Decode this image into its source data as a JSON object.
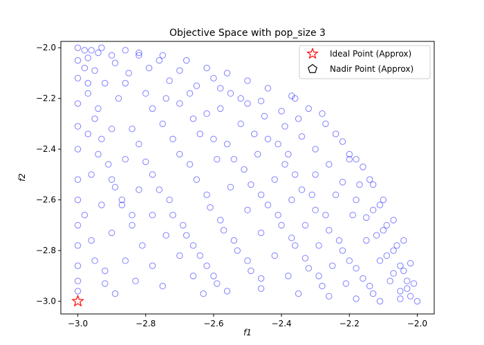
{
  "chart_data": {
    "type": "scatter",
    "title": "Objective Space with pop_size 3",
    "xlabel": "f1",
    "ylabel": "f2",
    "xlim": [
      -3.05,
      -1.95
    ],
    "ylim": [
      -3.05,
      -1.975
    ],
    "xticks": [
      -3.0,
      -2.8,
      -2.6,
      -2.4,
      -2.2,
      -2.0
    ],
    "yticks": [
      -3.0,
      -2.8,
      -2.6,
      -2.4,
      -2.2,
      -2.0
    ],
    "xtick_labels": [
      "−3.0",
      "−2.8",
      "−2.6",
      "−2.4",
      "−2.2",
      "−2.0"
    ],
    "ytick_labels": [
      "−3.0",
      "−2.8",
      "−2.6",
      "−2.4",
      "−2.2",
      "−2.0"
    ],
    "grid": false,
    "legend_placement": "top-right",
    "colors": {
      "population": "#0000ff",
      "ideal": "#ff0000",
      "nadir": "#000000"
    },
    "series": [
      {
        "marker": "open-circle",
        "color": "#0000ff",
        "points": [
          [
            -3.0,
            -2.0
          ],
          [
            -2.98,
            -2.01
          ],
          [
            -2.96,
            -2.01
          ],
          [
            -2.93,
            -2.0
          ],
          [
            -2.86,
            -2.01
          ],
          [
            -2.82,
            -2.02
          ],
          [
            -2.75,
            -2.03
          ],
          [
            -2.68,
            -2.05
          ],
          [
            -2.62,
            -2.08
          ],
          [
            -2.56,
            -2.1
          ],
          [
            -2.5,
            -2.13
          ],
          [
            -2.44,
            -2.16
          ],
          [
            -2.37,
            -2.19
          ],
          [
            -2.32,
            -2.24
          ],
          [
            -2.27,
            -2.3
          ],
          [
            -2.22,
            -2.37
          ],
          [
            -2.18,
            -2.44
          ],
          [
            -2.14,
            -2.52
          ],
          [
            -2.1,
            -2.6
          ],
          [
            -2.07,
            -2.68
          ],
          [
            -2.04,
            -2.76
          ],
          [
            -2.02,
            -2.85
          ],
          [
            -2.01,
            -2.93
          ],
          [
            -2.0,
            -3.0
          ],
          [
            -3.0,
            -2.05
          ],
          [
            -3.0,
            -2.12
          ],
          [
            -3.0,
            -2.22
          ],
          [
            -3.0,
            -2.31
          ],
          [
            -3.0,
            -2.4
          ],
          [
            -3.0,
            -2.52
          ],
          [
            -3.0,
            -2.6
          ],
          [
            -3.0,
            -2.7
          ],
          [
            -3.0,
            -2.78
          ],
          [
            -3.0,
            -2.86
          ],
          [
            -3.0,
            -2.92
          ],
          [
            -3.0,
            -2.96
          ],
          [
            -2.97,
            -2.04
          ],
          [
            -2.95,
            -2.09
          ],
          [
            -2.92,
            -2.14
          ],
          [
            -2.89,
            -2.06
          ],
          [
            -2.85,
            -2.1
          ],
          [
            -2.79,
            -2.08
          ],
          [
            -2.73,
            -2.13
          ],
          [
            -2.67,
            -2.18
          ],
          [
            -2.6,
            -2.12
          ],
          [
            -2.55,
            -2.18
          ],
          [
            -2.5,
            -2.22
          ],
          [
            -2.45,
            -2.27
          ],
          [
            -2.39,
            -2.31
          ],
          [
            -2.34,
            -2.35
          ],
          [
            -2.3,
            -2.4
          ],
          [
            -2.26,
            -2.46
          ],
          [
            -2.22,
            -2.53
          ],
          [
            -2.18,
            -2.6
          ],
          [
            -2.15,
            -2.67
          ],
          [
            -2.12,
            -2.74
          ],
          [
            -2.09,
            -2.82
          ],
          [
            -2.07,
            -2.89
          ],
          [
            -2.05,
            -2.96
          ],
          [
            -2.97,
            -2.18
          ],
          [
            -2.95,
            -2.28
          ],
          [
            -2.93,
            -2.36
          ],
          [
            -2.91,
            -2.46
          ],
          [
            -2.89,
            -2.55
          ],
          [
            -2.87,
            -2.62
          ],
          [
            -2.84,
            -2.7
          ],
          [
            -2.81,
            -2.78
          ],
          [
            -2.78,
            -2.86
          ],
          [
            -2.75,
            -2.94
          ],
          [
            -2.88,
            -2.2
          ],
          [
            -2.84,
            -2.32
          ],
          [
            -2.8,
            -2.45
          ],
          [
            -2.76,
            -2.56
          ],
          [
            -2.72,
            -2.66
          ],
          [
            -2.68,
            -2.74
          ],
          [
            -2.64,
            -2.82
          ],
          [
            -2.6,
            -2.9
          ],
          [
            -2.56,
            -2.96
          ],
          [
            -2.8,
            -2.18
          ],
          [
            -2.75,
            -2.3
          ],
          [
            -2.7,
            -2.42
          ],
          [
            -2.65,
            -2.52
          ],
          [
            -2.61,
            -2.63
          ],
          [
            -2.57,
            -2.72
          ],
          [
            -2.53,
            -2.8
          ],
          [
            -2.49,
            -2.88
          ],
          [
            -2.46,
            -2.95
          ],
          [
            -2.7,
            -2.22
          ],
          [
            -2.64,
            -2.34
          ],
          [
            -2.59,
            -2.44
          ],
          [
            -2.55,
            -2.55
          ],
          [
            -2.5,
            -2.64
          ],
          [
            -2.46,
            -2.73
          ],
          [
            -2.42,
            -2.82
          ],
          [
            -2.38,
            -2.9
          ],
          [
            -2.35,
            -2.97
          ],
          [
            -2.62,
            -2.26
          ],
          [
            -2.56,
            -2.38
          ],
          [
            -2.51,
            -2.48
          ],
          [
            -2.46,
            -2.58
          ],
          [
            -2.41,
            -2.66
          ],
          [
            -2.37,
            -2.75
          ],
          [
            -2.33,
            -2.83
          ],
          [
            -2.29,
            -2.9
          ],
          [
            -2.26,
            -2.98
          ],
          [
            -2.52,
            -2.3
          ],
          [
            -2.47,
            -2.42
          ],
          [
            -2.42,
            -2.52
          ],
          [
            -2.37,
            -2.6
          ],
          [
            -2.33,
            -2.7
          ],
          [
            -2.29,
            -2.78
          ],
          [
            -2.25,
            -2.86
          ],
          [
            -2.21,
            -2.93
          ],
          [
            -2.18,
            -2.99
          ],
          [
            -2.44,
            -2.36
          ],
          [
            -2.39,
            -2.46
          ],
          [
            -2.34,
            -2.56
          ],
          [
            -2.3,
            -2.64
          ],
          [
            -2.26,
            -2.72
          ],
          [
            -2.22,
            -2.8
          ],
          [
            -2.18,
            -2.87
          ],
          [
            -2.14,
            -2.94
          ],
          [
            -2.11,
            -3.0
          ],
          [
            -2.96,
            -2.5
          ],
          [
            -2.93,
            -2.62
          ],
          [
            -2.9,
            -2.73
          ],
          [
            -2.86,
            -2.84
          ],
          [
            -2.83,
            -2.92
          ],
          [
            -2.96,
            -2.76
          ],
          [
            -2.92,
            -2.88
          ],
          [
            -2.89,
            -2.97
          ],
          [
            -2.82,
            -2.38
          ],
          [
            -2.78,
            -2.5
          ],
          [
            -2.73,
            -2.6
          ],
          [
            -2.69,
            -2.7
          ],
          [
            -2.66,
            -2.78
          ],
          [
            -2.62,
            -2.86
          ],
          [
            -2.59,
            -2.93
          ],
          [
            -2.58,
            -2.24
          ],
          [
            -2.48,
            -2.34
          ],
          [
            -2.38,
            -2.42
          ],
          [
            -2.3,
            -2.5
          ],
          [
            -2.24,
            -2.58
          ],
          [
            -2.19,
            -2.66
          ],
          [
            -2.15,
            -2.76
          ],
          [
            -2.11,
            -2.84
          ],
          [
            -2.08,
            -2.92
          ],
          [
            -2.05,
            -2.99
          ],
          [
            -2.94,
            -2.02
          ],
          [
            -2.9,
            -2.03
          ],
          [
            -2.82,
            -2.03
          ],
          [
            -2.76,
            -2.05
          ],
          [
            -2.7,
            -2.09
          ],
          [
            -2.65,
            -2.15
          ],
          [
            -2.58,
            -2.16
          ],
          [
            -2.52,
            -2.2
          ],
          [
            -2.46,
            -2.21
          ],
          [
            -2.4,
            -2.25
          ],
          [
            -2.35,
            -2.28
          ],
          [
            -2.2,
            -2.42
          ],
          [
            -2.16,
            -2.47
          ],
          [
            -2.13,
            -2.54
          ],
          [
            -2.11,
            -2.62
          ],
          [
            -2.09,
            -2.7
          ],
          [
            -2.06,
            -2.78
          ],
          [
            -2.04,
            -2.88
          ],
          [
            -2.03,
            -2.95
          ],
          [
            -2.02,
            -2.98
          ],
          [
            -2.86,
            -2.14
          ],
          [
            -2.78,
            -2.24
          ],
          [
            -2.72,
            -2.36
          ],
          [
            -2.67,
            -2.46
          ],
          [
            -2.62,
            -2.58
          ],
          [
            -2.58,
            -2.68
          ],
          [
            -2.54,
            -2.76
          ],
          [
            -2.5,
            -2.84
          ],
          [
            -2.46,
            -2.91
          ],
          [
            -2.9,
            -2.32
          ],
          [
            -2.86,
            -2.44
          ],
          [
            -2.82,
            -2.56
          ],
          [
            -2.78,
            -2.66
          ],
          [
            -2.74,
            -2.74
          ],
          [
            -2.7,
            -2.82
          ],
          [
            -2.66,
            -2.9
          ],
          [
            -2.63,
            -2.97
          ],
          [
            -2.98,
            -2.66
          ],
          [
            -2.95,
            -2.84
          ],
          [
            -2.92,
            -2.93
          ],
          [
            -2.97,
            -2.34
          ],
          [
            -2.94,
            -2.42
          ],
          [
            -2.9,
            -2.52
          ],
          [
            -2.87,
            -2.6
          ],
          [
            -2.84,
            -2.66
          ],
          [
            -2.36,
            -2.2
          ],
          [
            -2.28,
            -2.26
          ],
          [
            -2.24,
            -2.34
          ],
          [
            -2.2,
            -2.44
          ],
          [
            -2.17,
            -2.54
          ],
          [
            -2.13,
            -2.64
          ],
          [
            -2.1,
            -2.72
          ],
          [
            -2.07,
            -2.8
          ],
          [
            -2.05,
            -2.86
          ],
          [
            -2.03,
            -2.92
          ],
          [
            -2.41,
            -2.38
          ],
          [
            -2.36,
            -2.5
          ],
          [
            -2.31,
            -2.58
          ],
          [
            -2.27,
            -2.66
          ],
          [
            -2.23,
            -2.76
          ],
          [
            -2.2,
            -2.84
          ],
          [
            -2.16,
            -2.91
          ],
          [
            -2.13,
            -2.97
          ],
          [
            -2.98,
            -2.08
          ],
          [
            -2.97,
            -2.14
          ],
          [
            -2.94,
            -2.24
          ],
          [
            -2.74,
            -2.2
          ],
          [
            -2.66,
            -2.28
          ],
          [
            -2.6,
            -2.36
          ],
          [
            -2.54,
            -2.44
          ],
          [
            -2.49,
            -2.54
          ],
          [
            -2.44,
            -2.62
          ],
          [
            -2.4,
            -2.7
          ],
          [
            -2.36,
            -2.78
          ],
          [
            -2.32,
            -2.87
          ],
          [
            -2.28,
            -2.94
          ]
        ]
      }
    ],
    "legend": [
      {
        "label": "Ideal Point (Approx)",
        "marker": "star",
        "color": "#ff0000",
        "point": [
          -3.0,
          -3.0
        ]
      },
      {
        "label": "Nadir Point (Approx)",
        "marker": "pentagon",
        "color": "#000000"
      }
    ]
  }
}
